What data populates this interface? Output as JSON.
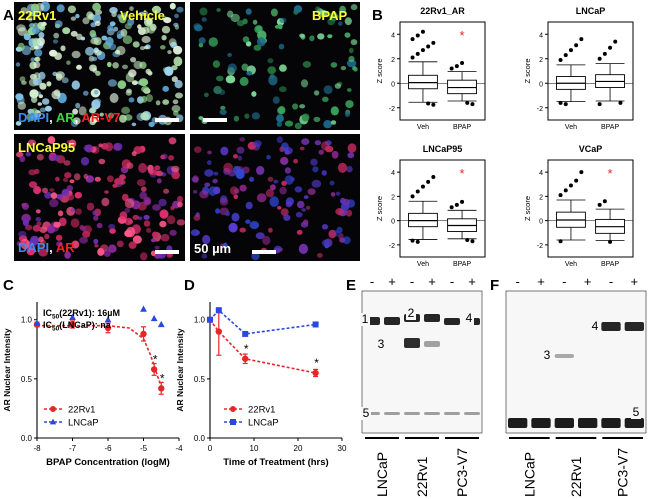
{
  "panel_letters": {
    "A": "A",
    "B": "B",
    "C": "C",
    "D": "D",
    "E": "E",
    "F": "F"
  },
  "panel_a": {
    "labels": {
      "cell_line_top": "22Rv1",
      "condition_vehicle": "Vehicle",
      "condition_bpap": "BPAP",
      "cell_line_bottom": "LNCaP95",
      "stain_top": [
        "DAPI",
        ", ",
        "AR",
        ", ",
        "AR-V7"
      ],
      "stain_bottom": [
        "DAPI",
        ", ",
        "AR"
      ],
      "scale_bar": "50 µm"
    },
    "colors": {
      "dapi": "#3c8cf0",
      "ar_green": "#33dd33",
      "ar_red": "#ff2020",
      "label_yellow": "#ffff33",
      "background": "#050508"
    }
  },
  "chart_data": [
    {
      "type": "boxplot",
      "panel": "B",
      "title": "22Rv1_AR",
      "ylabel": "Z score",
      "ylim": [
        -3,
        5
      ],
      "yticks": [
        "-2",
        "0",
        "2",
        "4"
      ],
      "categories": [
        "Veh",
        "BPAP"
      ],
      "boxes": [
        {
          "q1": -0.45,
          "median": 0.05,
          "q3": 0.65,
          "whisker_low": -1.55,
          "whisker_high": 1.75,
          "outliers": [
            2.1,
            2.4,
            2.7,
            3.0,
            3.3,
            3.6,
            3.9,
            4.2,
            -1.65,
            -1.75
          ]
        },
        {
          "q1": -0.85,
          "median": -0.35,
          "q3": 0.25,
          "whisker_low": -1.45,
          "whisker_high": 0.95,
          "outliers": [
            1.2,
            1.4,
            1.65,
            -1.6,
            -1.7
          ]
        }
      ],
      "significant": [
        false,
        true
      ],
      "annotation": "*"
    },
    {
      "type": "boxplot",
      "panel": "B",
      "title": "LNCaP",
      "ylabel": "Z score",
      "ylim": [
        -3,
        5
      ],
      "yticks": [
        "-2",
        "0",
        "2",
        "4"
      ],
      "categories": [
        "Veh",
        "BPAP"
      ],
      "boxes": [
        {
          "q1": -0.5,
          "median": 0.0,
          "q3": 0.55,
          "whisker_low": -1.5,
          "whisker_high": 1.5,
          "outliers": [
            1.9,
            2.3,
            2.7,
            3.1,
            3.6,
            -1.6,
            -1.7
          ]
        },
        {
          "q1": -0.35,
          "median": 0.15,
          "q3": 0.7,
          "whisker_low": -1.45,
          "whisker_high": 1.6,
          "outliers": [
            2.0,
            2.4,
            2.9,
            3.4,
            -1.6,
            -1.7
          ]
        }
      ],
      "significant": [
        false,
        false
      ],
      "annotation": "*"
    },
    {
      "type": "boxplot",
      "panel": "B",
      "title": "LNCaP95",
      "ylabel": "Z score",
      "ylim": [
        -3,
        5
      ],
      "yticks": [
        "-2",
        "0",
        "2",
        "4"
      ],
      "categories": [
        "Veh",
        "BPAP"
      ],
      "boxes": [
        {
          "q1": -0.5,
          "median": 0.0,
          "q3": 0.6,
          "whisker_low": -1.55,
          "whisker_high": 1.6,
          "outliers": [
            2.0,
            2.4,
            2.8,
            3.2,
            3.6,
            -1.65,
            -1.75
          ]
        },
        {
          "q1": -0.9,
          "median": -0.4,
          "q3": 0.15,
          "whisker_low": -1.5,
          "whisker_high": 0.85,
          "outliers": [
            1.1,
            1.3,
            1.55,
            -1.6,
            -1.7
          ]
        }
      ],
      "significant": [
        false,
        true
      ],
      "annotation": "*"
    },
    {
      "type": "boxplot",
      "panel": "B",
      "title": "VCaP",
      "ylabel": "Z score",
      "ylim": [
        -3,
        5
      ],
      "yticks": [
        "-2",
        "0",
        "2",
        "4"
      ],
      "categories": [
        "Veh",
        "BPAP"
      ],
      "boxes": [
        {
          "q1": -0.55,
          "median": 0.05,
          "q3": 0.7,
          "whisker_low": -1.6,
          "whisker_high": 1.7,
          "outliers": [
            2.1,
            2.5,
            2.9,
            3.3,
            4.0,
            -1.7
          ]
        },
        {
          "q1": -1.05,
          "median": -0.5,
          "q3": 0.1,
          "whisker_low": -1.65,
          "whisker_high": 0.95,
          "outliers": [
            1.3,
            1.6,
            -1.75
          ]
        }
      ],
      "significant": [
        false,
        true
      ],
      "annotation": "*"
    },
    {
      "type": "line",
      "panel": "C",
      "xlabel": "BPAP Concentration (logM)",
      "ylabel": "AR Nuclear Intensity",
      "xlim": [
        -8,
        -4
      ],
      "ylim": [
        0,
        1.15
      ],
      "xticks": [
        "-8",
        "-7",
        "-6",
        "-5",
        "-4"
      ],
      "yticks": [
        "0.0",
        "0.5",
        "1.0"
      ],
      "ic50_lines": [
        [
          "IC",
          "50",
          "(22Rv1): 16µM"
        ],
        [
          "IC",
          "50",
          "(LNCaP): na"
        ]
      ],
      "series": [
        {
          "name": "22Rv1",
          "color": "#e8262a",
          "marker": "circle",
          "x": [
            -8,
            -7,
            -6,
            -5,
            -4.7,
            -4.5
          ],
          "y": [
            0.96,
            0.96,
            0.93,
            0.88,
            0.58,
            0.42
          ],
          "err": [
            0.02,
            0.03,
            0.04,
            0.06,
            0.05,
            0.05
          ],
          "fit_x": [
            -8,
            -7,
            -6,
            -5.4,
            -5.0,
            -4.8,
            -4.6,
            -4.45
          ],
          "fit_y": [
            0.95,
            0.95,
            0.95,
            0.93,
            0.84,
            0.7,
            0.52,
            0.4
          ]
        },
        {
          "name": "LNCaP",
          "color": "#2a48e0",
          "marker": "triangle",
          "x": [
            -8,
            -7,
            -6,
            -5,
            -4.7,
            -4.5
          ],
          "y": [
            0.97,
            1.02,
            1.0,
            1.09,
            1.01,
            0.96
          ]
        }
      ],
      "significance": [
        {
          "x": -4.7,
          "y": 0.58,
          "label": "*"
        },
        {
          "x": -4.5,
          "y": 0.42,
          "label": "*"
        }
      ]
    },
    {
      "type": "line",
      "panel": "D",
      "xlabel": "Time of Treatment (hrs)",
      "ylabel": "AR Nuclear Intensity",
      "xlim": [
        0,
        30
      ],
      "ylim": [
        0,
        1.15
      ],
      "xticks": [
        "0",
        "10",
        "20",
        "30"
      ],
      "yticks": [
        "0.0",
        "0.5",
        "1.0"
      ],
      "series": [
        {
          "name": "22Rv1",
          "color": "#e8262a",
          "marker": "circle",
          "x": [
            0,
            2,
            8,
            24
          ],
          "y": [
            1.0,
            0.9,
            0.67,
            0.55
          ],
          "err": [
            0,
            0.2,
            0.04,
            0.03
          ]
        },
        {
          "name": "LNCaP",
          "color": "#2a48e0",
          "marker": "square",
          "x": [
            0,
            2,
            8,
            24
          ],
          "y": [
            1.0,
            1.08,
            0.88,
            0.96
          ]
        }
      ],
      "significance": [
        {
          "x": 8,
          "y": 0.67,
          "label": "*"
        },
        {
          "x": 24,
          "y": 0.55,
          "label": "*"
        }
      ]
    }
  ],
  "blots": [
    {
      "panel": "E",
      "lane_signs": [
        "-",
        "+",
        "-",
        "+",
        "-",
        "+"
      ],
      "groups": [
        "LNCaP",
        "22Rv1",
        "PC3-V7"
      ],
      "band_labels": [
        "1",
        "2",
        "3",
        "4",
        "5"
      ]
    },
    {
      "panel": "F",
      "lane_signs": [
        "-",
        "+",
        "-",
        "+",
        "-",
        "+"
      ],
      "groups": [
        "LNCaP",
        "22Rv1",
        "PC3-V7"
      ],
      "band_labels": [
        "3",
        "4",
        "5"
      ]
    }
  ]
}
